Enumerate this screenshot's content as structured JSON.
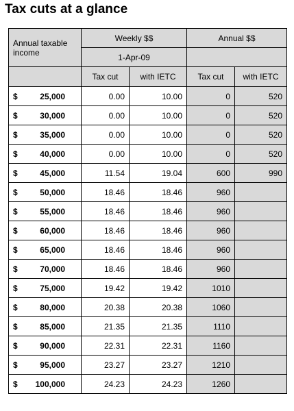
{
  "title": "Tax cuts at a glance",
  "header": {
    "income_label": "Annual  taxable income",
    "weekly_group": "Weekly $$",
    "weekly_date": "1-Apr-09",
    "annual_group": "Annual $$",
    "cols": [
      "Tax cut",
      "with IETC",
      "Tax cut",
      "with IETC"
    ]
  },
  "currency_symbol": "$",
  "rows": [
    {
      "income": "25,000",
      "weekly_tax_cut": "0.00",
      "weekly_with_ietc": "10.00",
      "annual_tax_cut": "0",
      "annual_with_ietc": "520"
    },
    {
      "income": "30,000",
      "weekly_tax_cut": "0.00",
      "weekly_with_ietc": "10.00",
      "annual_tax_cut": "0",
      "annual_with_ietc": "520"
    },
    {
      "income": "35,000",
      "weekly_tax_cut": "0.00",
      "weekly_with_ietc": "10.00",
      "annual_tax_cut": "0",
      "annual_with_ietc": "520"
    },
    {
      "income": "40,000",
      "weekly_tax_cut": "0.00",
      "weekly_with_ietc": "10.00",
      "annual_tax_cut": "0",
      "annual_with_ietc": "520"
    },
    {
      "income": "45,000",
      "weekly_tax_cut": "11.54",
      "weekly_with_ietc": "19.04",
      "annual_tax_cut": "600",
      "annual_with_ietc": "990"
    },
    {
      "income": "50,000",
      "weekly_tax_cut": "18.46",
      "weekly_with_ietc": "18.46",
      "annual_tax_cut": "960",
      "annual_with_ietc": ""
    },
    {
      "income": "55,000",
      "weekly_tax_cut": "18.46",
      "weekly_with_ietc": "18.46",
      "annual_tax_cut": "960",
      "annual_with_ietc": ""
    },
    {
      "income": "60,000",
      "weekly_tax_cut": "18.46",
      "weekly_with_ietc": "18.46",
      "annual_tax_cut": "960",
      "annual_with_ietc": ""
    },
    {
      "income": "65,000",
      "weekly_tax_cut": "18.46",
      "weekly_with_ietc": "18.46",
      "annual_tax_cut": "960",
      "annual_with_ietc": ""
    },
    {
      "income": "70,000",
      "weekly_tax_cut": "18.46",
      "weekly_with_ietc": "18.46",
      "annual_tax_cut": "960",
      "annual_with_ietc": ""
    },
    {
      "income": "75,000",
      "weekly_tax_cut": "19.42",
      "weekly_with_ietc": "19.42",
      "annual_tax_cut": "1010",
      "annual_with_ietc": ""
    },
    {
      "income": "80,000",
      "weekly_tax_cut": "20.38",
      "weekly_with_ietc": "20.38",
      "annual_tax_cut": "1060",
      "annual_with_ietc": ""
    },
    {
      "income": "85,000",
      "weekly_tax_cut": "21.35",
      "weekly_with_ietc": "21.35",
      "annual_tax_cut": "1110",
      "annual_with_ietc": ""
    },
    {
      "income": "90,000",
      "weekly_tax_cut": "22.31",
      "weekly_with_ietc": "22.31",
      "annual_tax_cut": "1160",
      "annual_with_ietc": ""
    },
    {
      "income": "95,000",
      "weekly_tax_cut": "23.27",
      "weekly_with_ietc": "23.27",
      "annual_tax_cut": "1210",
      "annual_with_ietc": ""
    },
    {
      "income": "100,000",
      "weekly_tax_cut": "24.23",
      "weekly_with_ietc": "24.23",
      "annual_tax_cut": "1260",
      "annual_with_ietc": ""
    }
  ],
  "colors": {
    "shaded": "#d9d9d9",
    "border": "#000000",
    "background": "#ffffff"
  }
}
